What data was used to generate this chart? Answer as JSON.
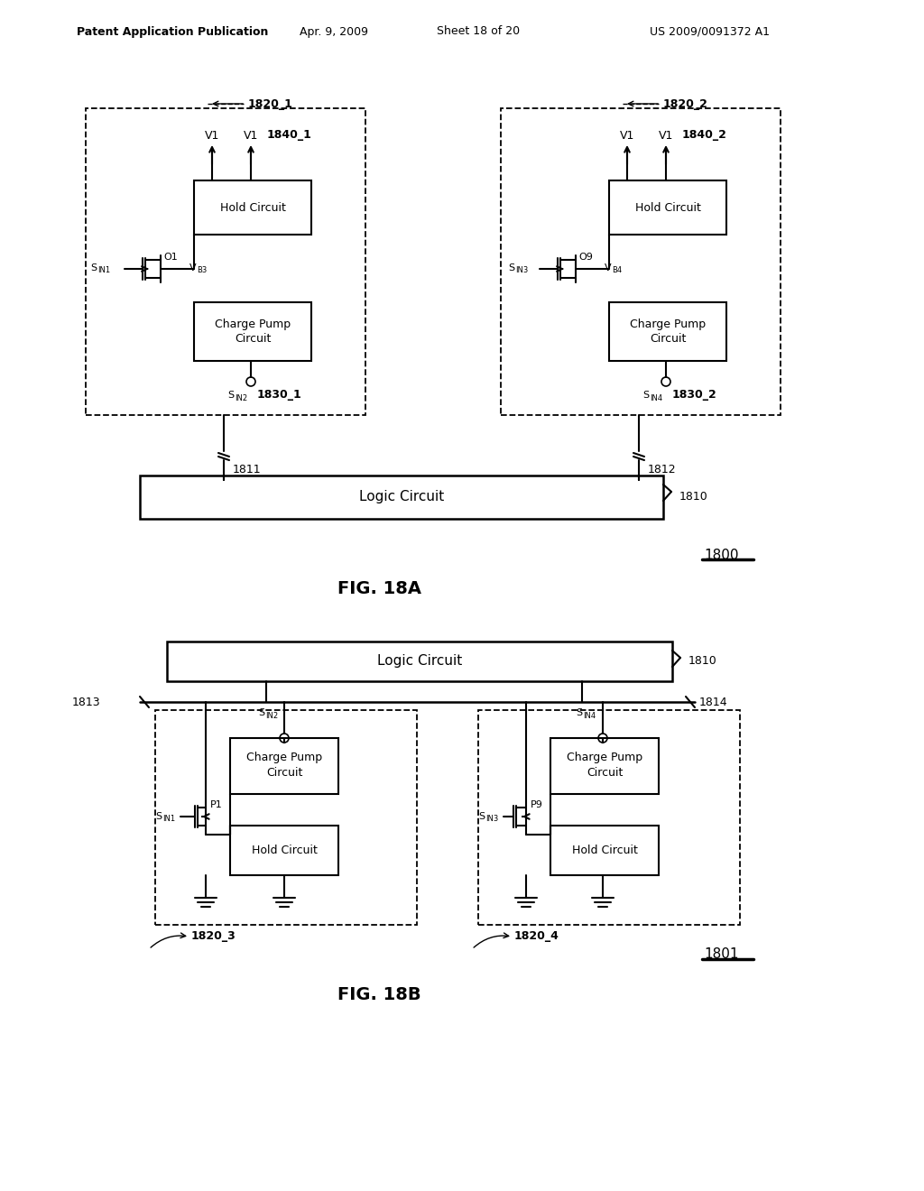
{
  "title_header": "Patent Application Publication",
  "date_header": "Apr. 9, 2009",
  "sheet_header": "Sheet 18 of 20",
  "patent_header": "US 2009/0091372 A1",
  "fig_a_label": "FIG. 18A",
  "fig_b_label": "FIG. 18B",
  "bg_color": "#ffffff",
  "line_color": "#000000"
}
